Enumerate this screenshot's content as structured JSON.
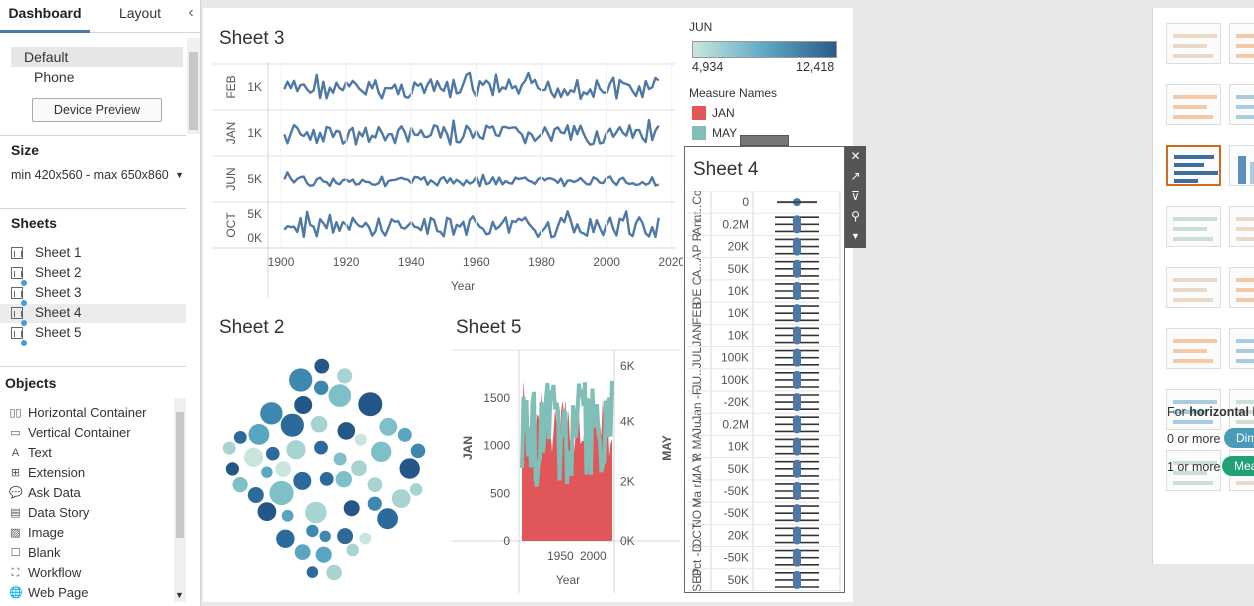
{
  "left_panel": {
    "tabs": [
      "Dashboard",
      "Layout"
    ],
    "collapse_glyph": "‹",
    "device_options": [
      "Default",
      "Phone"
    ],
    "device_preview_label": "Device Preview",
    "size": {
      "title": "Size",
      "value": "min 420x560 - max 650x860"
    },
    "sheets": {
      "title": "Sheets",
      "items": [
        "Sheet 1",
        "Sheet 2",
        "Sheet 3",
        "Sheet 4",
        "Sheet 5"
      ]
    },
    "objects": {
      "title": "Objects",
      "items": [
        {
          "label": "Horizontal Container",
          "icon": "horizontal-container-icon",
          "glyph": "▯▯"
        },
        {
          "label": "Vertical Container",
          "icon": "vertical-container-icon",
          "glyph": "▭"
        },
        {
          "label": "Text",
          "icon": "text-icon",
          "glyph": "A"
        },
        {
          "label": "Extension",
          "icon": "extension-icon",
          "glyph": "⊞"
        },
        {
          "label": "Ask Data",
          "icon": "ask-data-icon",
          "glyph": "💬"
        },
        {
          "label": "Data Story",
          "icon": "data-story-icon",
          "glyph": "▤"
        },
        {
          "label": "Image",
          "icon": "image-icon",
          "glyph": "▨"
        },
        {
          "label": "Blank",
          "icon": "blank-icon",
          "glyph": "☐"
        },
        {
          "label": "Workflow",
          "icon": "workflow-icon",
          "glyph": "⛶"
        },
        {
          "label": "Web Page",
          "icon": "web-page-icon",
          "glyph": "🌐"
        }
      ]
    }
  },
  "dashboard": {
    "sheet3": {
      "title": "Sheet 3"
    },
    "sheet2": {
      "title": "Sheet 2"
    },
    "sheet5": {
      "title": "Sheet 5"
    },
    "sheet4": {
      "title": "Sheet 4"
    },
    "legend_jun": {
      "title": "JUN",
      "min": "4,934",
      "max": "12,418",
      "color_low": "#c9e6de",
      "color_high": "#2b5b8a"
    },
    "legend_measures": {
      "title": "Measure Names",
      "items": [
        {
          "label": "JAN",
          "color": "#e15759"
        },
        {
          "label": "MAY",
          "color": "#7fbfb8"
        }
      ]
    }
  },
  "right_panel": {
    "hint_prefix": "For ",
    "hint_bold": "horizontal b",
    "rows": [
      {
        "label": "0 or more",
        "pill": "Dim",
        "color": "#4a9bba"
      },
      {
        "label": "1 or more",
        "pill": "Mea",
        "color": "#1fa374"
      }
    ]
  },
  "chart_data": [
    {
      "type": "line",
      "title": "Sheet 3",
      "xlabel": "Year",
      "x_ticks": [
        1900,
        1920,
        1940,
        1960,
        1980,
        2000,
        2020
      ],
      "xlim": [
        1896,
        2021
      ],
      "panels": [
        {
          "label": "FEB",
          "ticks": [
            "1K"
          ]
        },
        {
          "label": "JAN",
          "ticks": [
            "1K"
          ]
        },
        {
          "label": "JUN",
          "ticks": [
            "5K"
          ]
        },
        {
          "label": "OCT",
          "ticks": [
            "5K",
            "0K"
          ]
        }
      ],
      "color": "#4e79a7"
    },
    {
      "type": "scatter",
      "title": "Sheet 2",
      "description_colors": [
        "#c9e6de",
        "#2b5b8a"
      ]
    },
    {
      "type": "bar",
      "title": "Sheet 5",
      "xlabel": "Year",
      "x_ticks": [
        "1950",
        "2000"
      ],
      "y_left_label": "JAN",
      "y_left_ticks": [
        0,
        500,
        1000,
        1500
      ],
      "y_right_label": "MAY",
      "y_right_ticks": [
        "0K",
        "2K",
        "4K",
        "6K"
      ],
      "series": [
        {
          "name": "JAN",
          "color": "#e15759"
        },
        {
          "name": "MAY",
          "color": "#7fbfb8"
        }
      ]
    },
    {
      "type": "scatter",
      "title": "Sheet 4",
      "row_labels": [
        "nt..Cou",
        "An..",
        "AP R",
        "A...",
        "DE C",
        "FEB",
        "JAN",
        "JUL",
        "JU..",
        "Jan -F..",
        "Ju..",
        "R MA",
        "MA Y",
        "Ma r...",
        "NO V",
        "OCT",
        "Oct -D..",
        "SEP"
      ],
      "tick_labels": [
        "0",
        "0.2M",
        "20K",
        "50K",
        "10K",
        "10K",
        "10K",
        "100K",
        "100K",
        "-20K",
        "0.2M",
        "10K",
        "50K",
        "-50K",
        "-50K",
        "20K",
        "-50K",
        "50K"
      ]
    }
  ]
}
